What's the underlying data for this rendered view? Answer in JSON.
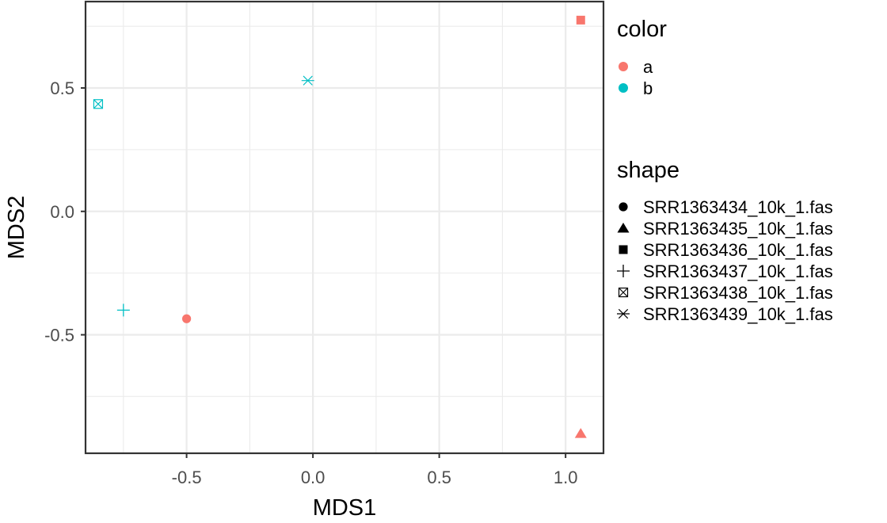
{
  "chart_data": {
    "type": "scatter",
    "xlabel": "MDS1",
    "ylabel": "MDS2",
    "xlim": [
      -0.9,
      1.15
    ],
    "ylim": [
      -0.98,
      0.85
    ],
    "xticks": [
      {
        "value": -0.5,
        "label": "-0.5"
      },
      {
        "value": 0.0,
        "label": "0.0"
      },
      {
        "value": 0.5,
        "label": "0.5"
      },
      {
        "value": 1.0,
        "label": "1.0"
      }
    ],
    "yticks": [
      {
        "value": -0.5,
        "label": "-0.5"
      },
      {
        "value": 0.0,
        "label": "0.0"
      },
      {
        "value": 0.5,
        "label": "0.5"
      }
    ],
    "grid": true,
    "theme": "bw",
    "legend_position": "right",
    "points": [
      {
        "x": -0.5,
        "y": -0.435,
        "color": "a",
        "shape": "SRR1363434_10k_1.fas"
      },
      {
        "x": 1.06,
        "y": -0.9,
        "color": "a",
        "shape": "SRR1363435_10k_1.fas"
      },
      {
        "x": 1.06,
        "y": 0.775,
        "color": "a",
        "shape": "SRR1363436_10k_1.fas"
      },
      {
        "x": -0.75,
        "y": -0.4,
        "color": "b",
        "shape": "SRR1363437_10k_1.fas"
      },
      {
        "x": -0.85,
        "y": 0.435,
        "color": "b",
        "shape": "SRR1363438_10k_1.fas"
      },
      {
        "x": -0.02,
        "y": 0.53,
        "color": "b",
        "shape": "SRR1363439_10k_1.fas"
      }
    ],
    "legends": {
      "color": {
        "title": "color",
        "entries": [
          {
            "label": "a",
            "color": "#F8766D"
          },
          {
            "label": "b",
            "color": "#00BFC4"
          }
        ]
      },
      "shape": {
        "title": "shape",
        "entries": [
          {
            "label": "SRR1363434_10k_1.fas",
            "symbol": "circle"
          },
          {
            "label": "SRR1363435_10k_1.fas",
            "symbol": "triangle"
          },
          {
            "label": "SRR1363436_10k_1.fas",
            "symbol": "square"
          },
          {
            "label": "SRR1363437_10k_1.fas",
            "symbol": "plus"
          },
          {
            "label": "SRR1363438_10k_1.fas",
            "symbol": "boxed-x"
          },
          {
            "label": "SRR1363439_10k_1.fas",
            "symbol": "asterisk"
          }
        ]
      }
    }
  }
}
